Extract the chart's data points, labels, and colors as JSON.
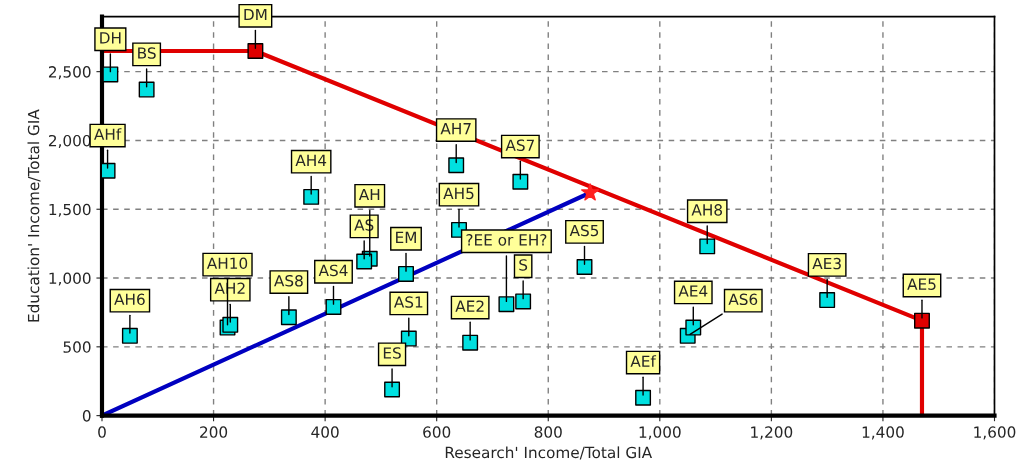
{
  "chart_data": {
    "type": "scatter",
    "xlabel": "Research' Income/Total GIA",
    "ylabel": "Education' Income/Total GIA",
    "xlim": [
      0,
      1600
    ],
    "ylim": [
      0,
      2900
    ],
    "xticks": [
      0,
      200,
      400,
      600,
      800,
      {
        "value": 1000,
        "label": "1,000"
      },
      {
        "value": 1200,
        "label": "1,200"
      },
      {
        "value": 1400,
        "label": "1,400"
      },
      {
        "value": 1600,
        "label": "1,600"
      }
    ],
    "yticks": [
      0,
      500,
      {
        "value": 1000,
        "label": "1,000"
      },
      {
        "value": 1500,
        "label": "1,500"
      },
      {
        "value": 2000,
        "label": "2,000"
      },
      {
        "value": 2500,
        "label": "2,500"
      }
    ],
    "grid": true,
    "series": [
      {
        "type": "line",
        "color": "#e00000",
        "x": [
          0,
          275,
          1470,
          1470
        ],
        "values": [
          2650,
          2650,
          690,
          0
        ]
      },
      {
        "type": "line",
        "color": "#0000c0",
        "x": [
          0,
          875
        ],
        "values": [
          0,
          1620
        ]
      },
      {
        "type": "scatter",
        "marker": "square",
        "color": "#00e0e0",
        "x": [
          15,
          80,
          10,
          375,
          635,
          750,
          640,
          480,
          470,
          545,
          725,
          755,
          865,
          1085,
          1300,
          1050,
          1060,
          970,
          660,
          550,
          520,
          415,
          335,
          225,
          230,
          50
        ],
        "values": [
          2480,
          2370,
          1780,
          1590,
          1820,
          1700,
          1350,
          1140,
          1120,
          1030,
          810,
          830,
          1080,
          1230,
          840,
          580,
          640,
          130,
          530,
          560,
          190,
          790,
          715,
          640,
          660,
          580
        ]
      },
      {
        "type": "scatter",
        "marker": "square",
        "color": "#e00000",
        "x": [
          275,
          1470
        ],
        "values": [
          2650,
          690
        ]
      },
      {
        "type": "scatter",
        "marker": "star",
        "color": "#ff2020",
        "x": [
          875
        ],
        "values": [
          1620
        ]
      }
    ],
    "annotations": [
      {
        "text": "DH",
        "x": 15,
        "y": 2480
      },
      {
        "text": "BS",
        "x": 80,
        "y": 2370
      },
      {
        "text": "DM",
        "x": 275,
        "y": 2650
      },
      {
        "text": "AHf",
        "x": 10,
        "y": 1780
      },
      {
        "text": "AH4",
        "x": 375,
        "y": 1590
      },
      {
        "text": "AH7",
        "x": 635,
        "y": 1820
      },
      {
        "text": "AS7",
        "x": 750,
        "y": 1700
      },
      {
        "text": "AH5",
        "x": 640,
        "y": 1350
      },
      {
        "text": "AS",
        "x": 470,
        "y": 1120
      },
      {
        "text": "AH",
        "x": 480,
        "y": 1140
      },
      {
        "text": "EM",
        "x": 545,
        "y": 1030
      },
      {
        "text": "S",
        "x": 755,
        "y": 830
      },
      {
        "text": "?EE or EH?",
        "x": 725,
        "y": 810
      },
      {
        "text": "AS5",
        "x": 865,
        "y": 1080
      },
      {
        "text": "AH8",
        "x": 1085,
        "y": 1230
      },
      {
        "text": "AE3",
        "x": 1300,
        "y": 840
      },
      {
        "text": "AE5",
        "x": 1470,
        "y": 690
      },
      {
        "text": "AE4",
        "x": 1060,
        "y": 640
      },
      {
        "text": "AS6",
        "x": 1050,
        "y": 580
      },
      {
        "text": "AEf",
        "x": 970,
        "y": 130
      },
      {
        "text": "AE2",
        "x": 660,
        "y": 530
      },
      {
        "text": "AS1",
        "x": 550,
        "y": 560
      },
      {
        "text": "ES",
        "x": 520,
        "y": 190
      },
      {
        "text": "AS4",
        "x": 415,
        "y": 790
      },
      {
        "text": "AS8",
        "x": 335,
        "y": 715
      },
      {
        "text": "AH2",
        "x": 230,
        "y": 660
      },
      {
        "text": "AH10",
        "x": 225,
        "y": 640
      },
      {
        "text": "AH6",
        "x": 50,
        "y": 580
      }
    ]
  }
}
